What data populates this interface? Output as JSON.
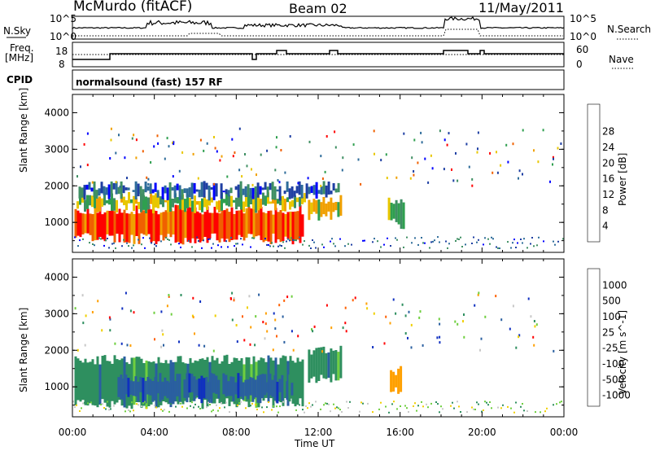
{
  "header": {
    "station": "McMurdo (fitACF)",
    "beam": "Beam 02",
    "date": "11/May/2011"
  },
  "panels": {
    "nsky_label": "N.Sky",
    "nsky_top": "10^5",
    "nsky_bottom": "10^0",
    "nsearch_label": "N.Search",
    "nsearch_top": "10^5",
    "nsearch_bottom": "10^0",
    "freq_label_1": "Freq.",
    "freq_label_2": "[MHz]",
    "freq_top": "18",
    "freq_bottom": "8",
    "nave_label": "Nave",
    "nave_top": "60",
    "nave_bottom": "0",
    "cpid_label": "CPID",
    "cpid_value": "normalsound (fast) 157 RF"
  },
  "colors": {
    "power": [
      "#0000ff",
      "#1f3fa3",
      "#2e6c9a",
      "#3f8f63",
      "#2f9f4f",
      "#e8c700",
      "#f0a000",
      "#f06000",
      "#ff0000"
    ],
    "velocity": [
      "#ff0000",
      "#ff6000",
      "#ffa000",
      "#f0d000",
      "#c8c8c8",
      "#6fcf3f",
      "#2e8f5f",
      "#2a5fa0",
      "#1030c0"
    ]
  },
  "chart_data": [
    {
      "type": "heatmap",
      "panel": "power",
      "ylabel": "Slant Range [km]",
      "xlabel": "",
      "xticks": [
        "00:00",
        "04:00",
        "08:00",
        "12:00",
        "16:00",
        "20:00",
        "00:00"
      ],
      "xlim_hours": [
        0,
        24
      ],
      "yticks": [
        1000,
        2000,
        3000,
        4000
      ],
      "ylim": [
        180,
        4500
      ],
      "colorbar_label": "Power [dB]",
      "colorbar_ticks": [
        "4",
        "8",
        "12",
        "16",
        "20",
        "24",
        "28"
      ],
      "regions": [
        {
          "t0": 0.1,
          "t1": 11.4,
          "r0": 550,
          "r1": 1400,
          "value": 28
        },
        {
          "t0": 0.2,
          "t1": 11.5,
          "r0": 1400,
          "r1": 1750,
          "value": 18
        },
        {
          "t0": 0.3,
          "t1": 13.1,
          "r0": 1750,
          "r1": 2050,
          "value": 10
        },
        {
          "t0": 11.5,
          "t1": 13.2,
          "r0": 1200,
          "r1": 1700,
          "value": 22
        },
        {
          "t0": 15.4,
          "t1": 16.3,
          "r0": 950,
          "r1": 1600,
          "value": 16
        }
      ]
    },
    {
      "type": "heatmap",
      "panel": "velocity",
      "ylabel": "Slant Range [km]",
      "xlabel": "Time UT",
      "xticks": [
        "00:00",
        "04:00",
        "08:00",
        "12:00",
        "16:00",
        "20:00",
        "00:00"
      ],
      "xlim_hours": [
        0,
        24
      ],
      "yticks": [
        1000,
        2000,
        3000,
        4000
      ],
      "ylim": [
        180,
        4500
      ],
      "colorbar_label": "Velocity [m s^-1]",
      "colorbar_ticks": [
        "1000",
        "500",
        "100",
        "25",
        "-25",
        "-100",
        "-500",
        "-1000"
      ],
      "regions": [
        {
          "t0": 0.1,
          "t1": 11.4,
          "r0": 550,
          "r1": 1800,
          "value": 100
        },
        {
          "t0": 2.2,
          "t1": 10.8,
          "r0": 700,
          "r1": 1300,
          "value": 500
        },
        {
          "t0": 11.5,
          "t1": 13.2,
          "r0": 1200,
          "r1": 2050,
          "value": 100
        },
        {
          "t0": 15.5,
          "t1": 16.2,
          "r0": 950,
          "r1": 1500,
          "value": -100
        }
      ]
    }
  ],
  "axis": {
    "xlabel": "Time UT",
    "ylabel": "Slant Range [km]",
    "power_cb": "Power [dB]",
    "vel_cb": "Velocity [m s^-1]"
  }
}
